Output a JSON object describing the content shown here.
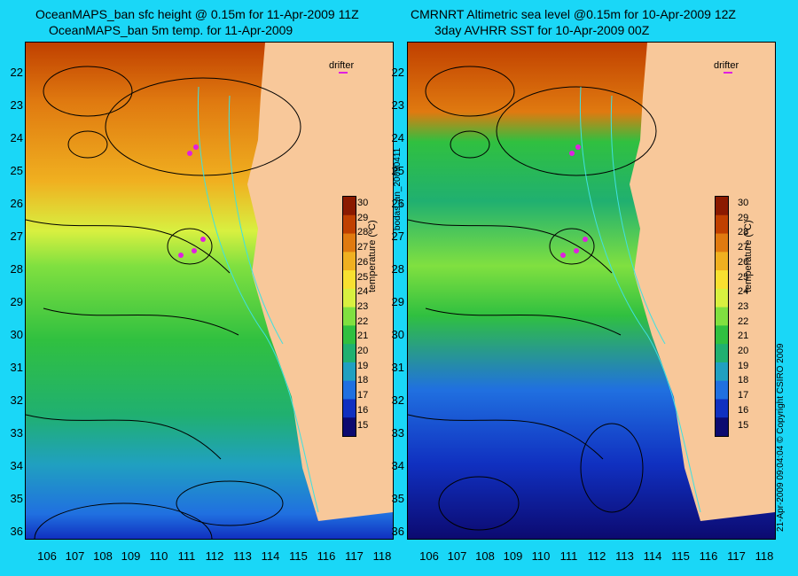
{
  "panels": [
    {
      "title_line1": "OceanMAPS_ban sfc height @ 0.15m for 11-Apr-2009 11Z",
      "title_line2": "OceanMAPS_ban 5m temp. for 11-Apr-2009",
      "drifter_label": "drifter",
      "side_label": "bodas_an_20090411"
    },
    {
      "title_line1": "CMRNRT Altimetric sea level  @0.15m  for 10-Apr-2009 12Z",
      "title_line2": "3day AVHRR SST for 10-Apr-2009 00Z",
      "drifter_label": "drifter",
      "side_label": "21-Apr-2009 09:04:04  © Copyright CSIRO 2009"
    }
  ],
  "axes": {
    "latitudes": [
      "22",
      "23",
      "24",
      "25",
      "26",
      "27",
      "28",
      "29",
      "30",
      "31",
      "32",
      "33",
      "34",
      "35",
      "36"
    ],
    "longitudes": [
      "106",
      "107",
      "108",
      "109",
      "110",
      "111",
      "112",
      "113",
      "114",
      "115",
      "116",
      "117",
      "118"
    ]
  },
  "colorbar": {
    "ticks": [
      "30",
      "29",
      "28",
      "27",
      "26",
      "25",
      "24",
      "23",
      "22",
      "21",
      "20",
      "19",
      "18",
      "17",
      "16",
      "15"
    ],
    "label": "temperature (ºC)",
    "colors": [
      "#8b1a00",
      "#c04000",
      "#e07a10",
      "#f0b020",
      "#f8e030",
      "#d8f040",
      "#80e040",
      "#30c040",
      "#20b070",
      "#20a0c0",
      "#2070e0",
      "#1030c0",
      "#0c0a70"
    ]
  },
  "land_color": "#f8c89a",
  "background_color": "#1ad7f7"
}
